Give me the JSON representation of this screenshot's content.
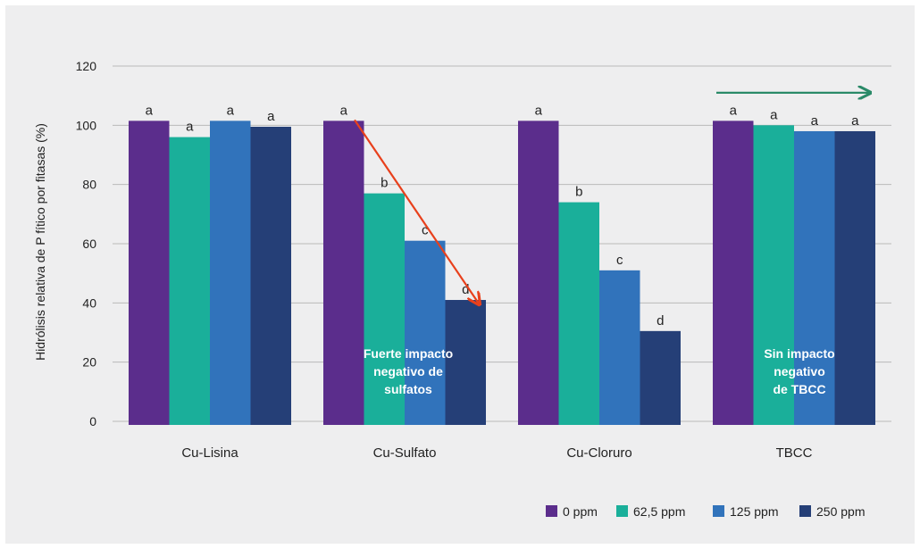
{
  "chart_data": {
    "type": "bar",
    "ylabel": "Hidrólisis relativa de P fítico por fitasas (%)",
    "xlabel": "",
    "ylim": [
      0,
      120
    ],
    "yticks": [
      0,
      20,
      40,
      60,
      80,
      100,
      120
    ],
    "grid": true,
    "legend_position": "bottom-right",
    "categories": [
      "Cu-Lisina",
      "Cu-Sulfato",
      "Cu-Cloruro",
      "TBCC"
    ],
    "series": [
      {
        "name": "0 ppm",
        "color": "#5b2d8c",
        "values": [
          101.5,
          101.5,
          101.5,
          101.5
        ]
      },
      {
        "name": "62,5 ppm",
        "color": "#1aaf9a",
        "values": [
          96,
          77,
          74,
          100
        ]
      },
      {
        "name": "125 ppm",
        "color": "#3173bb",
        "values": [
          101.5,
          61,
          51,
          98
        ]
      },
      {
        "name": "250 ppm",
        "color": "#253f77",
        "values": [
          99.5,
          41,
          30.5,
          98
        ]
      }
    ],
    "significance_letters": [
      [
        "a",
        "a",
        "a",
        "a"
      ],
      [
        "a",
        "b",
        "c",
        "d"
      ],
      [
        "a",
        "b",
        "c",
        "d"
      ],
      [
        "a",
        "a",
        "a",
        "a"
      ]
    ],
    "annotations": [
      {
        "category": "Cu-Sulfato",
        "lines": [
          "Fuerte impacto",
          "negativo de",
          "sulfatos"
        ],
        "color": "#ffffff"
      },
      {
        "category": "TBCC",
        "lines": [
          "Sin impacto",
          "negativo",
          "de TBCC"
        ],
        "color": "#ffffff"
      }
    ],
    "arrows": [
      {
        "category": "Cu-Sulfato",
        "direction": "down",
        "color": "#e8401c"
      },
      {
        "category": "TBCC",
        "direction": "flat",
        "color": "#2a8a68"
      }
    ]
  }
}
